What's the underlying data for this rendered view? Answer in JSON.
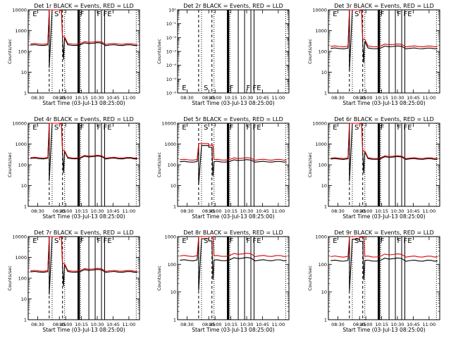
{
  "chart_data": [
    {
      "type": "line",
      "title": "Det 1r BLACK = Events, RED = LLD",
      "ylabel": "Counts/sec",
      "xlabel": "Start Time (03-Jul-13 08:25:00)",
      "ylim": [
        1,
        10000
      ],
      "xlim": [
        "08:25",
        "11:08"
      ],
      "x_ticks": [
        "08:30",
        "08:45",
        "10:00",
        "10:15",
        "10:30",
        "10:45",
        "11:00"
      ],
      "y_ticks": [
        "1",
        "10",
        "100",
        "1000",
        "10000"
      ],
      "flags": [
        "E",
        "S",
        "F",
        "F",
        "FE"
      ],
      "profile": "flare",
      "series": [
        {
          "name": "Events",
          "color": "#000000",
          "level": 200
        },
        {
          "name": "LLD",
          "color": "#e00000",
          "level": 230
        }
      ]
    },
    {
      "type": "line",
      "title": "Det 2r BLACK = Events, RED = LLD",
      "ylabel": "Counts/sec",
      "xlabel": "Start Time (03-Jul-13 08:25:00)",
      "ylim": [
        1e-06,
        1
      ],
      "xlim": [
        "08:25",
        "11:08"
      ],
      "x_ticks": [
        "08:30",
        "08:45",
        "10:00",
        "10:15",
        "10:30",
        "10:45",
        "11:00"
      ],
      "y_ticks": [
        "10⁻⁶",
        "10⁻⁵",
        "10⁻⁴",
        "10⁻³",
        "10⁻²",
        "10⁻¹",
        "10⁰"
      ],
      "flags": [
        "E",
        "S",
        "F",
        "F",
        "FE"
      ],
      "profile": "none",
      "series": []
    },
    {
      "type": "line",
      "title": "Det 3r BLACK = Events, RED = LLD",
      "ylabel": "Counts/sec",
      "xlabel": "Start Time (03-Jul-13 08:25:00)",
      "ylim": [
        1,
        10000
      ],
      "xlim": [
        "08:25",
        "11:08"
      ],
      "x_ticks": [
        "08:30",
        "08:45",
        "10:00",
        "10:15",
        "10:30",
        "10:45",
        "11:00"
      ],
      "y_ticks": [
        "1",
        "10",
        "100",
        "1000",
        "10000"
      ],
      "flags": [
        "E",
        "S",
        "F",
        "F",
        "FE"
      ],
      "profile": "flare",
      "series": [
        {
          "name": "Events",
          "color": "#000000",
          "level": 140
        },
        {
          "name": "LLD",
          "color": "#e00000",
          "level": 175
        }
      ]
    },
    {
      "type": "line",
      "title": "Det 4r BLACK = Events, RED = LLD",
      "ylabel": "Counts/sec",
      "xlabel": "Start Time (03-Jul-13 08:25:00)",
      "ylim": [
        1,
        10000
      ],
      "xlim": [
        "08:25",
        "11:08"
      ],
      "x_ticks": [
        "08:30",
        "08:45",
        "10:00",
        "10:15",
        "10:30",
        "10:45",
        "11:00"
      ],
      "y_ticks": [
        "1",
        "10",
        "100",
        "1000",
        "10000"
      ],
      "flags": [
        "E",
        "S",
        "F",
        "F",
        "FE"
      ],
      "profile": "flare",
      "series": [
        {
          "name": "Events",
          "color": "#000000",
          "level": 200
        },
        {
          "name": "LLD",
          "color": "#e00000",
          "level": 220
        }
      ]
    },
    {
      "type": "line",
      "title": "Det 5r BLACK = Events, RED = LLD",
      "ylabel": "Counts/sec",
      "xlabel": "Start Time (03-Jul-13 08:25:00)",
      "ylim": [
        1,
        10000
      ],
      "xlim": [
        "08:25",
        "11:08"
      ],
      "x_ticks": [
        "08:30",
        "08:45",
        "10:00",
        "10:15",
        "10:30",
        "10:45",
        "11:00"
      ],
      "y_ticks": [
        "1",
        "10",
        "100",
        "1000",
        "10000"
      ],
      "flags": [
        "E",
        "S",
        "F",
        "F",
        "FE"
      ],
      "profile": "flat",
      "series": [
        {
          "name": "Events",
          "color": "#000000",
          "level": 140
        },
        {
          "name": "LLD",
          "color": "#e00000",
          "level": 175
        }
      ]
    },
    {
      "type": "line",
      "title": "Det 6r BLACK = Events, RED = LLD",
      "ylabel": "Counts/sec",
      "xlabel": "Start Time (03-Jul-13 08:25:00)",
      "ylim": [
        1,
        10000
      ],
      "xlim": [
        "08:25",
        "11:08"
      ],
      "x_ticks": [
        "08:30",
        "08:45",
        "10:00",
        "10:15",
        "10:30",
        "10:45",
        "11:00"
      ],
      "y_ticks": [
        "1",
        "10",
        "100",
        "1000",
        "10000"
      ],
      "flags": [
        "E",
        "S",
        "F",
        "F",
        "FE"
      ],
      "profile": "flare",
      "series": [
        {
          "name": "Events",
          "color": "#000000",
          "level": 190
        },
        {
          "name": "LLD",
          "color": "#e00000",
          "level": 210
        }
      ]
    },
    {
      "type": "line",
      "title": "Det 7r BLACK = Events, RED = LLD",
      "ylabel": "Counts/sec",
      "xlabel": "Start Time (03-Jul-13 08:25:00)",
      "ylim": [
        1,
        10000
      ],
      "xlim": [
        "08:25",
        "11:08"
      ],
      "x_ticks": [
        "08:30",
        "08:45",
        "10:00",
        "10:15",
        "10:30",
        "10:45",
        "11:00"
      ],
      "y_ticks": [
        "1",
        "10",
        "100",
        "1000",
        "10000"
      ],
      "flags": [
        "E",
        "S",
        "F",
        "F",
        "FE"
      ],
      "profile": "flare",
      "series": [
        {
          "name": "Events",
          "color": "#000000",
          "level": 200
        },
        {
          "name": "LLD",
          "color": "#e00000",
          "level": 225
        }
      ]
    },
    {
      "type": "line",
      "title": "Det 8r BLACK = Events, RED = LLD",
      "ylabel": "Counts/sec",
      "xlabel": "Start Time (03-Jul-13 08:25:00)",
      "ylim": [
        1,
        1000
      ],
      "xlim": [
        "08:25",
        "11:08"
      ],
      "x_ticks": [
        "08:30",
        "08:45",
        "10:00",
        "10:15",
        "10:30",
        "10:45",
        "11:00"
      ],
      "y_ticks": [
        "1",
        "10",
        "100",
        "1000"
      ],
      "flags": [
        "E",
        "S",
        "F",
        "F",
        "FE"
      ],
      "profile": "flat",
      "series": [
        {
          "name": "Events",
          "color": "#000000",
          "level": 140
        },
        {
          "name": "LLD",
          "color": "#e00000",
          "level": 200
        }
      ]
    },
    {
      "type": "line",
      "title": "Det 9r BLACK = Events, RED = LLD",
      "ylabel": "Counts/sec",
      "xlabel": "Start Time (03-Jul-13 08:25:00)",
      "ylim": [
        1,
        1000
      ],
      "xlim": [
        "08:25",
        "11:08"
      ],
      "x_ticks": [
        "08:30",
        "08:45",
        "10:00",
        "10:15",
        "10:30",
        "10:45",
        "11:00"
      ],
      "y_ticks": [
        "1",
        "10",
        "100",
        "1000"
      ],
      "flags": [
        "E",
        "S",
        "F",
        "F",
        "FE"
      ],
      "profile": "flat",
      "series": [
        {
          "name": "Events",
          "color": "#000000",
          "level": 135
        },
        {
          "name": "LLD",
          "color": "#e00000",
          "level": 190
        }
      ]
    }
  ]
}
